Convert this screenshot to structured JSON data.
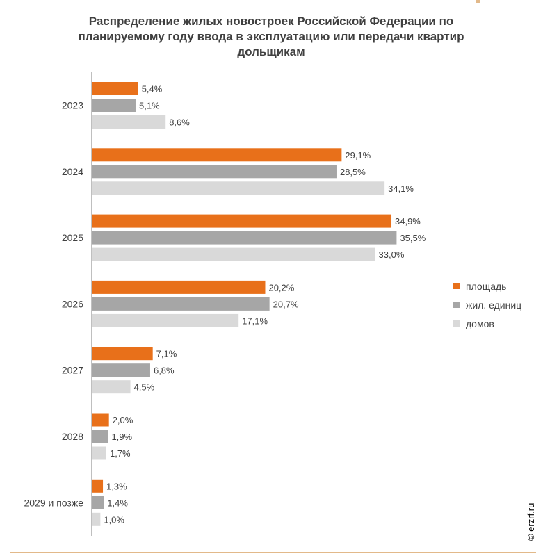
{
  "chart_data": {
    "type": "bar",
    "orientation": "horizontal",
    "title": "Распределение жилых новостроек Российской Федерации по планируемому году ввода в эксплуатацию или передачи квартир дольщикам",
    "categories": [
      "2023",
      "2024",
      "2025",
      "2026",
      "2027",
      "2028",
      "2029 и позже"
    ],
    "series": [
      {
        "name": "площадь",
        "color": "#e8701a",
        "values": [
          5.4,
          29.1,
          34.9,
          20.2,
          7.1,
          2.0,
          1.3
        ],
        "labels": [
          "5,4%",
          "29,1%",
          "34,9%",
          "20,2%",
          "7,1%",
          "2,0%",
          "1,3%"
        ]
      },
      {
        "name": "жил. единиц",
        "color": "#a6a6a6",
        "values": [
          5.1,
          28.5,
          35.5,
          20.7,
          6.8,
          1.9,
          1.4
        ],
        "labels": [
          "5,1%",
          "28,5%",
          "35,5%",
          "20,7%",
          "6,8%",
          "1,9%",
          "1,4%"
        ]
      },
      {
        "name": "домов",
        "color": "#d9d9d9",
        "values": [
          8.6,
          34.1,
          33.0,
          17.1,
          4.5,
          1.7,
          1.0
        ],
        "labels": [
          "8,6%",
          "34,1%",
          "33,0%",
          "17,1%",
          "4,5%",
          "1,7%",
          "1,0%"
        ]
      }
    ],
    "legend_position": "right",
    "grid": false
  },
  "credit": "© erzrf.ru"
}
